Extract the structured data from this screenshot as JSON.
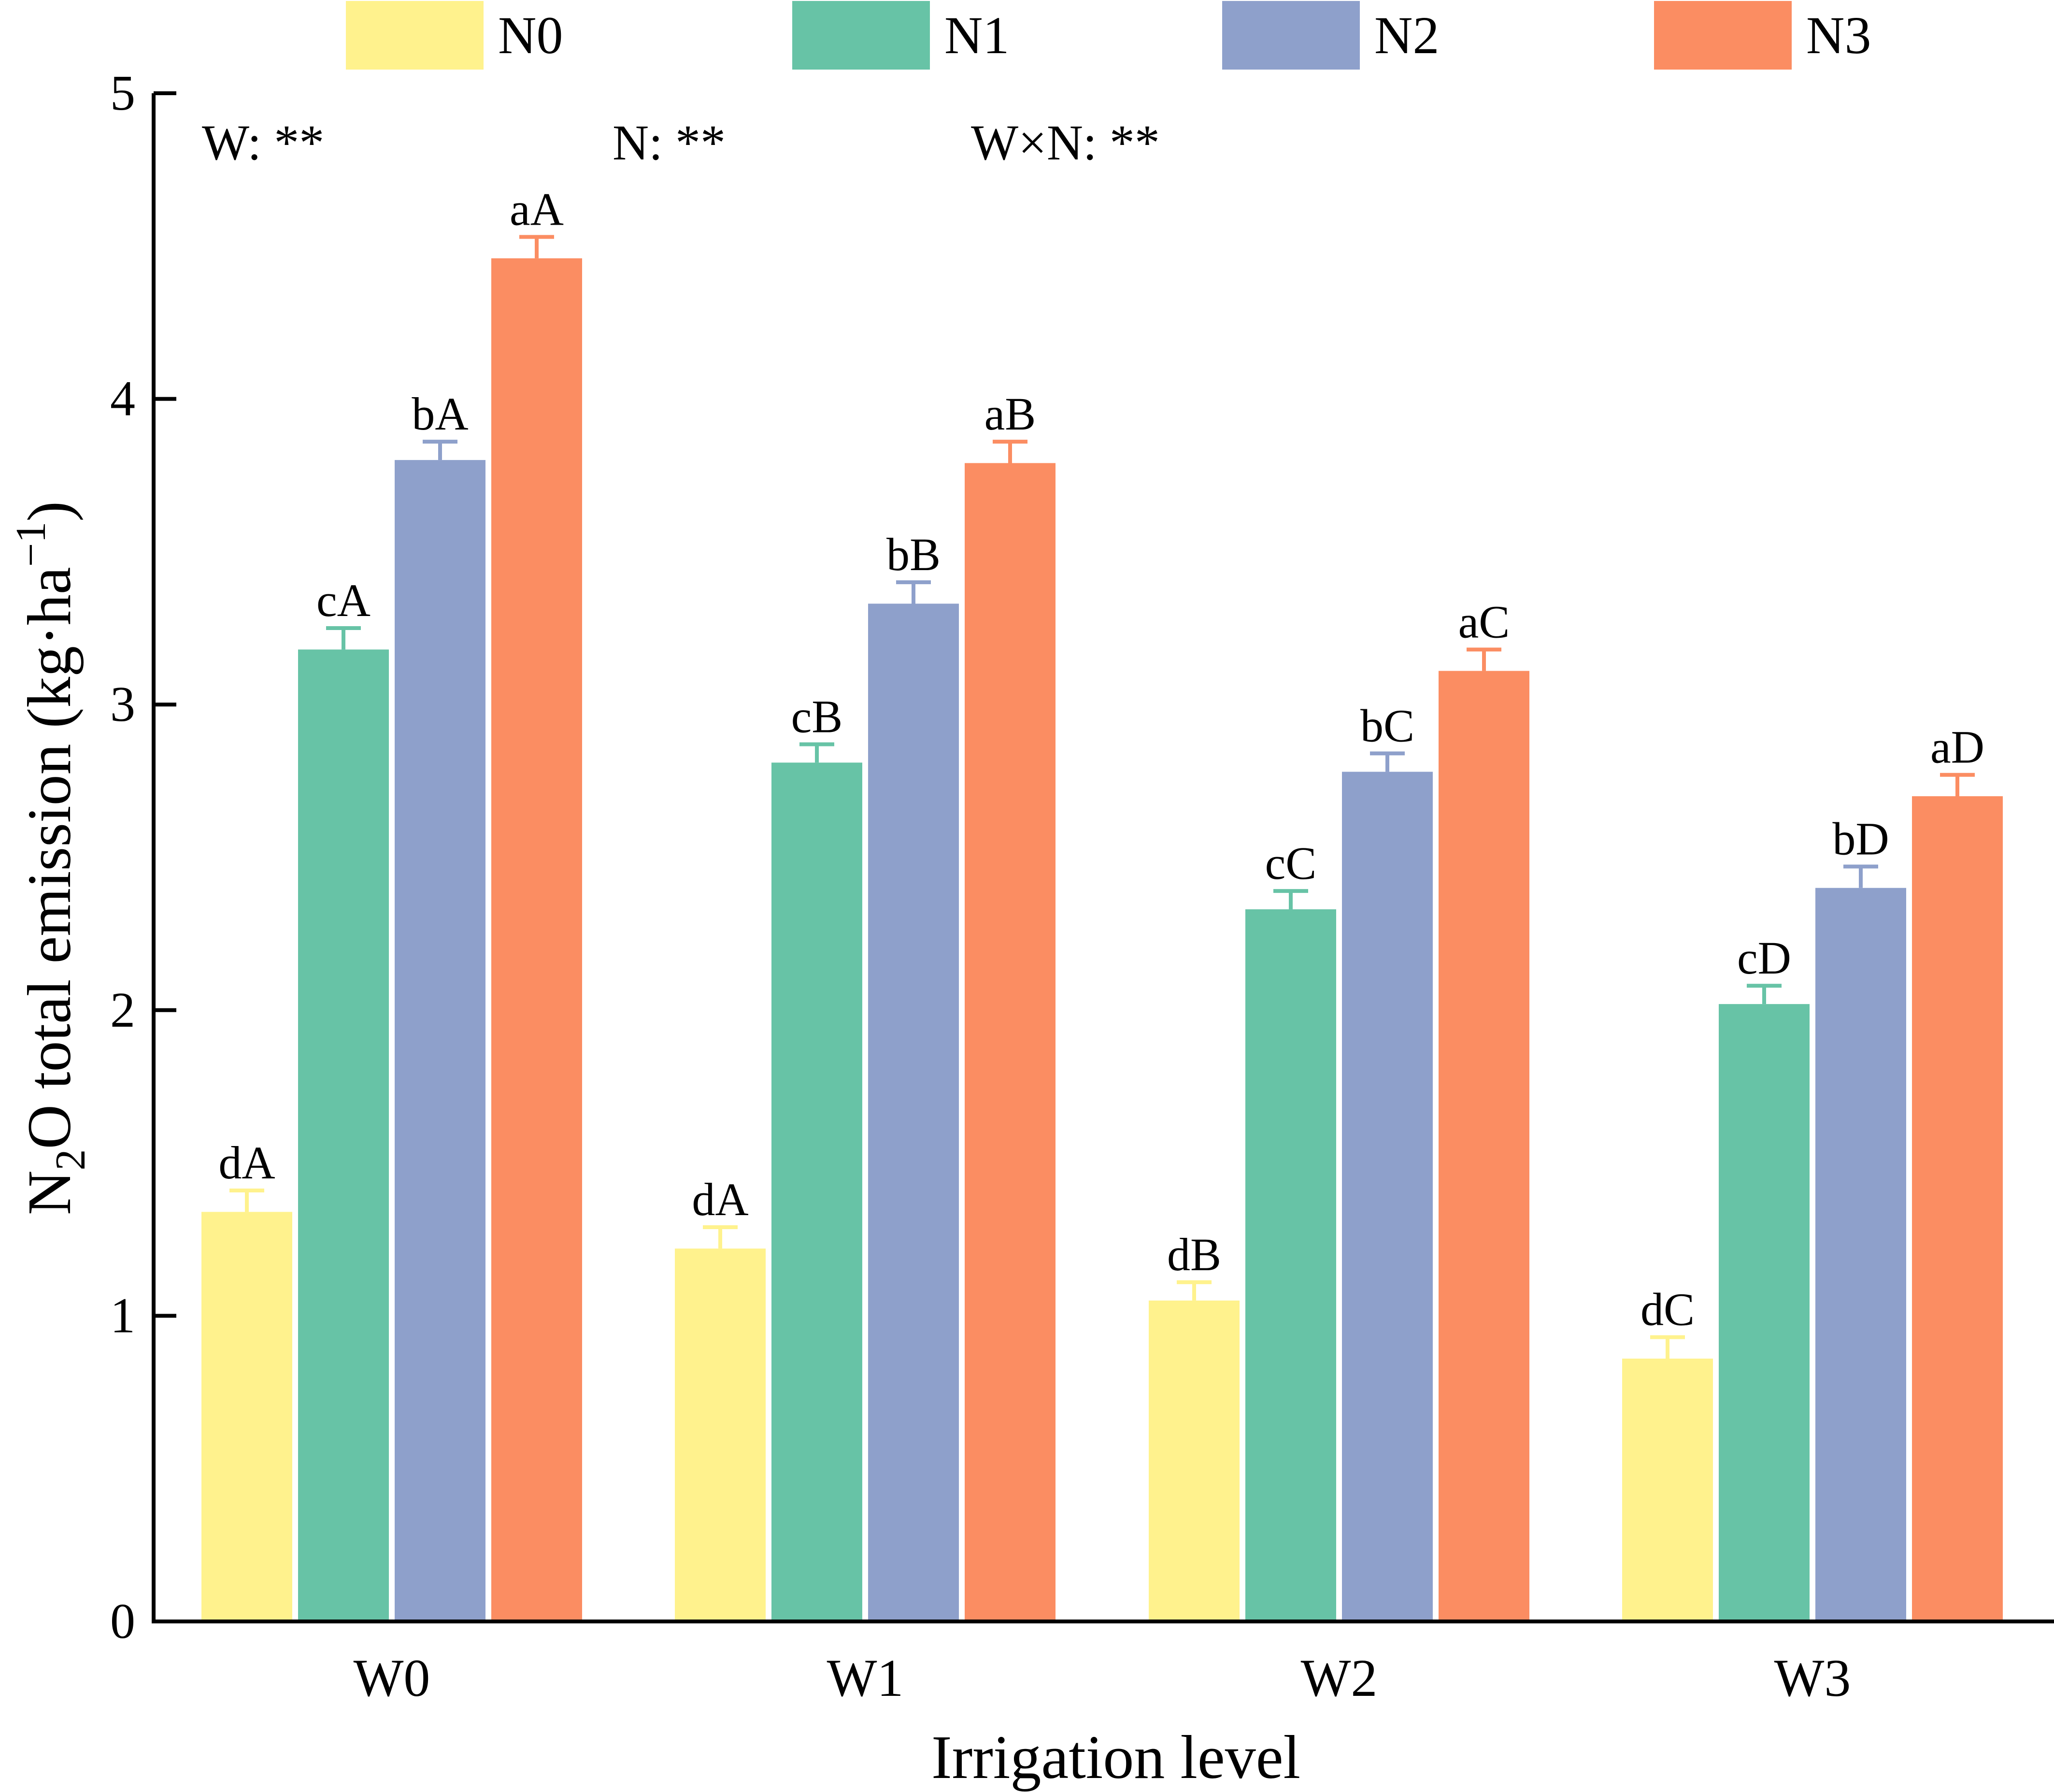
{
  "chart_data": {
    "type": "bar",
    "categories": [
      "W0",
      "W1",
      "W2",
      "W3"
    ],
    "series": [
      {
        "name": "N0",
        "color": "#FFF28D",
        "values": [
          1.34,
          1.22,
          1.05,
          0.86
        ],
        "errors": [
          0.07,
          0.07,
          0.06,
          0.07
        ],
        "labels": [
          "dA",
          "dA",
          "dB",
          "dC"
        ]
      },
      {
        "name": "N1",
        "color": "#67C3A6",
        "values": [
          3.18,
          2.81,
          2.33,
          2.02
        ],
        "errors": [
          0.07,
          0.06,
          0.06,
          0.06
        ],
        "labels": [
          "cA",
          "cB",
          "cC",
          "cD"
        ]
      },
      {
        "name": "N2",
        "color": "#8EA0CB",
        "values": [
          3.8,
          3.33,
          2.78,
          2.4
        ],
        "errors": [
          0.06,
          0.07,
          0.06,
          0.07
        ],
        "labels": [
          "bA",
          "bB",
          "bC",
          "bD"
        ]
      },
      {
        "name": "N3",
        "color": "#FB8D62",
        "values": [
          4.46,
          3.79,
          3.11,
          2.7
        ],
        "errors": [
          0.07,
          0.07,
          0.07,
          0.07
        ],
        "labels": [
          "aA",
          "aB",
          "aC",
          "aD"
        ]
      }
    ],
    "ylim": [
      0,
      5
    ],
    "yticks": [
      "0",
      "1",
      "2",
      "3",
      "4",
      "5"
    ],
    "xlabel": "Irrigation level",
    "ylabel": {
      "part1": "N",
      "sub": "2",
      "part2": "O total emission (kg·ha",
      "sup": "−1",
      "part3": ")"
    },
    "annotations": [
      "W: **",
      "N: **",
      "W×N: **"
    ],
    "legend_position": "top"
  }
}
